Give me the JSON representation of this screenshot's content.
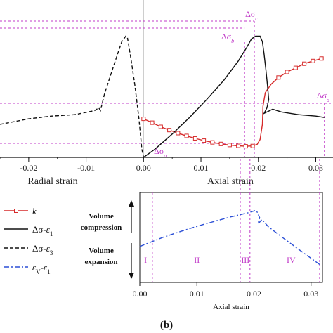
{
  "chart_data": [
    {
      "type": "line",
      "xlim": [
        -0.025,
        0.033
      ],
      "ylim": [
        0,
        1
      ],
      "x_ticks": [
        "-0.02",
        "-0.01",
        "0.00",
        "0.01",
        "0.02",
        "0.03"
      ],
      "x_tick_values": [
        -0.02,
        -0.01,
        0.0,
        0.01,
        0.02,
        0.03
      ],
      "xlabel_left": "Radial strain",
      "xlabel_right": "Axial strain",
      "stress_labels": {
        "a": "Δσa",
        "b": "Δσb",
        "c": "Δσc",
        "d": "Δσd"
      },
      "stress_label_parts": [
        {
          "base": "Δσ",
          "sub": "a"
        },
        {
          "base": "Δσ",
          "sub": "b"
        },
        {
          "base": "Δσ",
          "sub": "c"
        },
        {
          "base": "Δσ",
          "sub": "d"
        }
      ],
      "stress_points": {
        "a": {
          "x": 0.0,
          "y": 0.0
        },
        "b": {
          "x": 0.0176,
          "y": 0.84
        },
        "c": {
          "x": 0.0193,
          "y": 0.88
        },
        "d": {
          "x": 0.0315,
          "y": 0.27
        }
      },
      "series": [
        {
          "key": "k",
          "color": "#d62a2a",
          "style": "solid-marker",
          "points": [
            [
              0.0,
              0.28
            ],
            [
              0.0015,
              0.252
            ],
            [
              0.003,
              0.222
            ],
            [
              0.0045,
              0.198
            ],
            [
              0.006,
              0.176
            ],
            [
              0.0075,
              0.156
            ],
            [
              0.009,
              0.138
            ],
            [
              0.0105,
              0.122
            ],
            [
              0.012,
              0.109
            ],
            [
              0.0135,
              0.098
            ],
            [
              0.015,
              0.09
            ],
            [
              0.0165,
              0.084
            ],
            [
              0.0178,
              0.081
            ],
            [
              0.019,
              0.083
            ],
            [
              0.0198,
              0.095
            ],
            [
              0.0203,
              0.13
            ],
            [
              0.0207,
              0.24
            ],
            [
              0.0208,
              0.37
            ],
            [
              0.0212,
              0.47
            ],
            [
              0.0222,
              0.53
            ],
            [
              0.0235,
              0.58
            ],
            [
              0.025,
              0.62
            ],
            [
              0.0265,
              0.65
            ],
            [
              0.028,
              0.68
            ],
            [
              0.0295,
              0.7
            ],
            [
              0.031,
              0.718
            ]
          ],
          "marker_points": [
            [
              0.0,
              0.28
            ],
            [
              0.0015,
              0.252
            ],
            [
              0.003,
              0.222
            ],
            [
              0.0045,
              0.198
            ],
            [
              0.006,
              0.176
            ],
            [
              0.0075,
              0.156
            ],
            [
              0.009,
              0.138
            ],
            [
              0.0105,
              0.122
            ],
            [
              0.012,
              0.109
            ],
            [
              0.0135,
              0.098
            ],
            [
              0.015,
              0.09
            ],
            [
              0.0165,
              0.084
            ],
            [
              0.0178,
              0.081
            ],
            [
              0.019,
              0.083
            ],
            [
              0.0235,
              0.58
            ],
            [
              0.025,
              0.62
            ],
            [
              0.0265,
              0.65
            ],
            [
              0.028,
              0.68
            ],
            [
              0.0295,
              0.7
            ],
            [
              0.031,
              0.718
            ]
          ]
        },
        {
          "key": "axial",
          "color": "#111111",
          "style": "solid",
          "points": [
            [
              0.0,
              0.0
            ],
            [
              0.002,
              0.06
            ],
            [
              0.005,
              0.17
            ],
            [
              0.008,
              0.29
            ],
            [
              0.011,
              0.42
            ],
            [
              0.014,
              0.56
            ],
            [
              0.0165,
              0.7
            ],
            [
              0.018,
              0.8
            ],
            [
              0.0188,
              0.86
            ],
            [
              0.0195,
              0.88
            ],
            [
              0.0203,
              0.88
            ],
            [
              0.0207,
              0.84
            ],
            [
              0.021,
              0.75
            ],
            [
              0.0213,
              0.64
            ],
            [
              0.0216,
              0.52
            ],
            [
              0.0218,
              0.42
            ],
            [
              0.0215,
              0.36
            ],
            [
              0.021,
              0.32
            ],
            [
              0.0225,
              0.35
            ],
            [
              0.024,
              0.33
            ],
            [
              0.027,
              0.31
            ],
            [
              0.03,
              0.3
            ],
            [
              0.0315,
              0.29
            ]
          ]
        },
        {
          "key": "radial",
          "color": "#111111",
          "style": "dashed",
          "points": [
            [
              -0.025,
              0.24
            ],
            [
              -0.02,
              0.28
            ],
            [
              -0.016,
              0.3
            ],
            [
              -0.012,
              0.31
            ],
            [
              -0.0085,
              0.34
            ],
            [
              -0.0078,
              0.36
            ],
            [
              -0.0075,
              0.34
            ],
            [
              -0.0068,
              0.46
            ],
            [
              -0.005,
              0.69
            ],
            [
              -0.0038,
              0.84
            ],
            [
              -0.0031,
              0.88
            ],
            [
              -0.0028,
              0.87
            ],
            [
              -0.0022,
              0.72
            ],
            [
              -0.0015,
              0.52
            ],
            [
              -0.0008,
              0.28
            ],
            [
              -0.0003,
              0.06
            ],
            [
              0.0,
              0.0
            ]
          ]
        }
      ]
    },
    {
      "type": "line",
      "xlim": [
        0.0,
        0.032
      ],
      "ylim": [
        0,
        1
      ],
      "x_ticks": [
        "0.00",
        "0.01",
        "0.02",
        "0.03"
      ],
      "x_tick_values": [
        0.0,
        0.01,
        0.02,
        0.03
      ],
      "xlabel": "Axial strain",
      "ylabel_top": [
        "Volume",
        "compression"
      ],
      "ylabel_bottom": [
        "Volume",
        "expansion"
      ],
      "stages": [
        "I",
        "II",
        "III",
        "IV"
      ],
      "stage_x": [
        0.001,
        0.01,
        0.0185,
        0.0265
      ],
      "stage_boundaries": [
        0.0022,
        0.0176,
        0.0193,
        0.0315
      ],
      "series": [
        {
          "key": "volumetric",
          "color": "#2b4fd6",
          "style": "dashdot",
          "points": [
            [
              0.0,
              0.4
            ],
            [
              0.004,
              0.5
            ],
            [
              0.008,
              0.585
            ],
            [
              0.012,
              0.66
            ],
            [
              0.016,
              0.73
            ],
            [
              0.019,
              0.775
            ],
            [
              0.0203,
              0.8
            ],
            [
              0.0205,
              0.79
            ],
            [
              0.021,
              0.72
            ],
            [
              0.0207,
              0.65
            ],
            [
              0.0214,
              0.7
            ],
            [
              0.0225,
              0.62
            ],
            [
              0.025,
              0.5
            ],
            [
              0.028,
              0.36
            ],
            [
              0.0315,
              0.2
            ]
          ]
        }
      ]
    }
  ],
  "legend": [
    {
      "label": "k",
      "style": "marker",
      "color": "#d62a2a"
    },
    {
      "label_parts": [
        "Δσ",
        "-",
        "ε",
        "1"
      ],
      "style": "solid",
      "color": "#111111"
    },
    {
      "label_parts": [
        "Δσ",
        "-",
        "ε",
        "3"
      ],
      "style": "dashed",
      "color": "#111111"
    },
    {
      "label_parts": [
        "ε",
        "V",
        "-",
        "ε",
        "1"
      ],
      "style": "dashdot",
      "color": "#2b4fd6"
    }
  ],
  "panel_label": "(b)"
}
